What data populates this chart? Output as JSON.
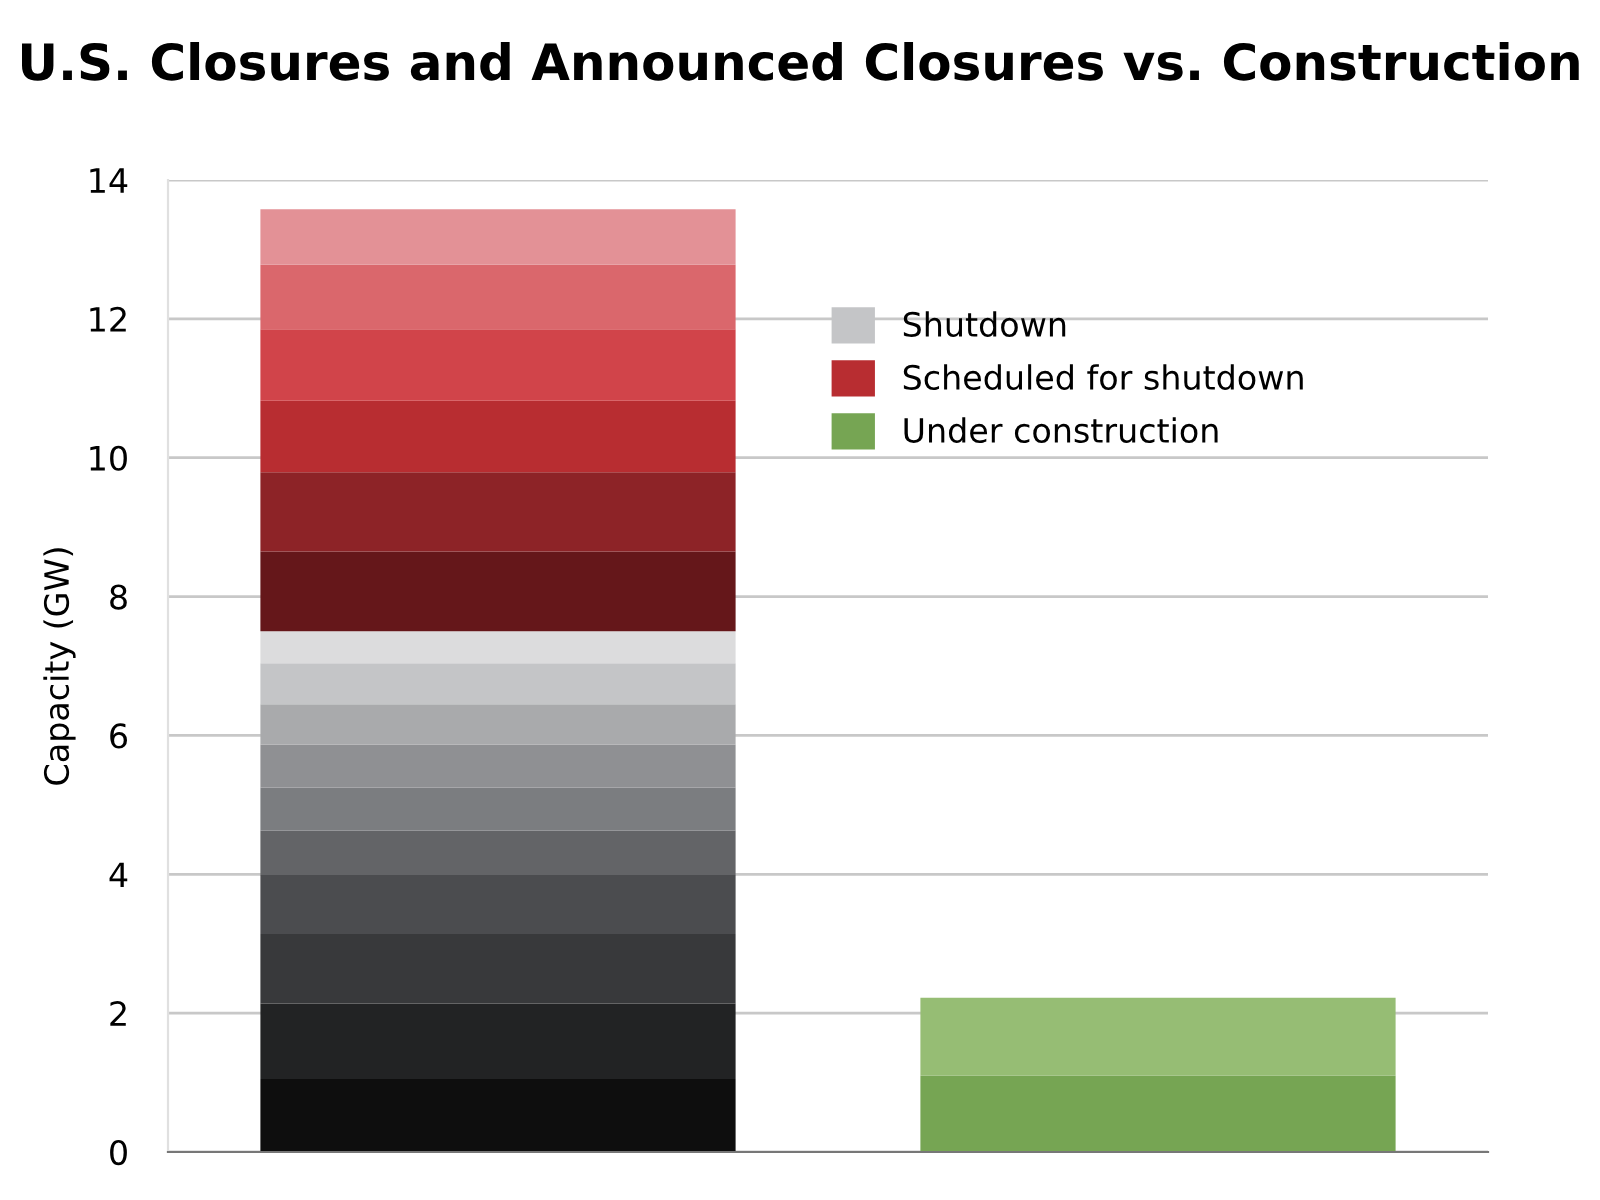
{
  "chart_data": {
    "type": "bar",
    "title": "U.S. Closures and Announced Closures vs. Construction",
    "ylabel": "Capacity (GW)",
    "categories": [
      null,
      null
    ],
    "stacked": true,
    "ylim": [
      0,
      14
    ],
    "yticks": [
      0,
      2,
      4,
      6,
      8,
      10,
      12,
      14
    ],
    "grid": "y",
    "legend": "top right",
    "series": [
      {
        "color": "#0e0e0e",
        "values": [
          1.05,
          null
        ]
      },
      {
        "color": "#222324",
        "values": [
          1.09,
          null
        ]
      },
      {
        "color": "#38393b",
        "values": [
          1.0,
          null
        ]
      },
      {
        "color": "#4b4c4f",
        "values": [
          0.85,
          null
        ]
      },
      {
        "color": "#636467",
        "values": [
          0.64,
          null
        ]
      },
      {
        "color": "#7b7d80",
        "values": [
          0.62,
          null
        ]
      },
      {
        "color": "#8f9093",
        "values": [
          0.62,
          null
        ]
      },
      {
        "color": "#a9aaac",
        "values": [
          0.58,
          null
        ]
      },
      {
        "name": "Shutdown",
        "color": "#c4c5c7",
        "values": [
          0.59,
          null
        ]
      },
      {
        "color": "#dcdcdd",
        "values": [
          0.46,
          null
        ]
      },
      {
        "color": "#65171a",
        "values": [
          1.15,
          null
        ]
      },
      {
        "color": "#8d2327",
        "values": [
          1.14,
          null
        ]
      },
      {
        "name": "Scheduled for shutdown",
        "color": "#b82d31",
        "values": [
          1.03,
          null
        ]
      },
      {
        "color": "#d1444a",
        "values": [
          1.03,
          null
        ]
      },
      {
        "color": "#da676c",
        "values": [
          0.93,
          null
        ]
      },
      {
        "color": "#e39196",
        "values": [
          0.8,
          null
        ]
      },
      {
        "name": "Under construction",
        "color": "#76a553",
        "values": [
          null,
          1.1
        ]
      },
      {
        "color": "#96bd74",
        "values": [
          null,
          1.12
        ]
      }
    ]
  }
}
